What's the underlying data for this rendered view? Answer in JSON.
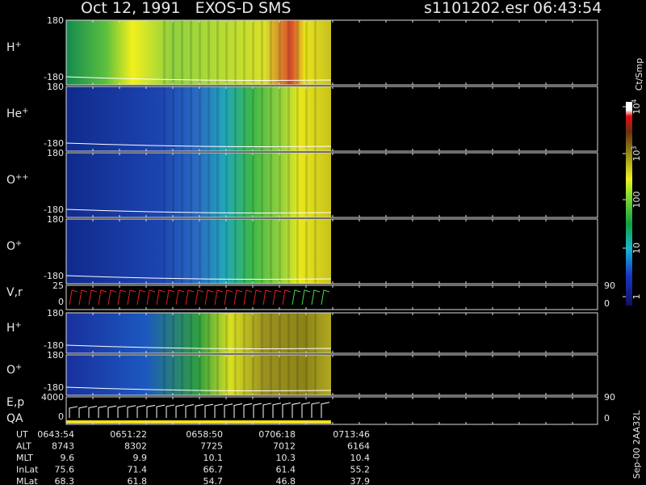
{
  "header": {
    "title": "Oct 12, 1991   EXOS-D SMS",
    "file": "s1101202.esr",
    "time": "06:43:54"
  },
  "panels": [
    {
      "label": {
        "base": "H",
        "sup": "+"
      },
      "ticks": [
        "180",
        "-180"
      ]
    },
    {
      "label": {
        "base": "He",
        "sup": "+"
      },
      "ticks": [
        "180",
        "-180"
      ]
    },
    {
      "label": {
        "base": "O",
        "sup": "++"
      },
      "ticks": [
        "180",
        "-180"
      ]
    },
    {
      "label": {
        "base": "O",
        "sup": "+"
      },
      "ticks": [
        "180",
        "-180"
      ]
    },
    {
      "label": {
        "base": "V,r"
      },
      "ticks": [
        "25",
        "0"
      ],
      "right_ticks": [
        "90",
        "0"
      ]
    },
    {
      "label": {
        "base": "H",
        "sup": "+"
      },
      "ticks": [
        "180",
        "-180"
      ]
    },
    {
      "label": {
        "base": "O",
        "sup": "+"
      },
      "ticks": [
        "180",
        "-180"
      ]
    },
    {
      "label": {
        "base": "E,p"
      },
      "label2": "QA",
      "ticks": [
        "4000",
        "0"
      ],
      "right_ticks": [
        "90",
        "0"
      ]
    }
  ],
  "colorbar": {
    "unit": "Ct/Smp",
    "ticks": [
      {
        "base": "10",
        "sup": "4"
      },
      {
        "base": "10",
        "sup": "3"
      },
      {
        "base": "100"
      },
      {
        "base": "10"
      },
      {
        "base": "1"
      }
    ]
  },
  "footer": {
    "rows": [
      {
        "label": "UT",
        "values": [
          "0643:54",
          "0651:22",
          "0658:50",
          "0706:18",
          "0713:46"
        ]
      },
      {
        "label": "ALT",
        "values": [
          "8743",
          "8302",
          "7725",
          "7012",
          "6164"
        ]
      },
      {
        "label": "MLT",
        "values": [
          "9.6",
          "9.9",
          "10.1",
          "10.3",
          "10.4"
        ]
      },
      {
        "label": "InLat",
        "values": [
          "75.6",
          "71.4",
          "66.7",
          "61.4",
          "55.2"
        ]
      },
      {
        "label": "MLat",
        "values": [
          "68.3",
          "61.8",
          "54.7",
          "46.8",
          "37.9"
        ]
      }
    ]
  },
  "stamp": "Sep-00 2AA32L"
}
